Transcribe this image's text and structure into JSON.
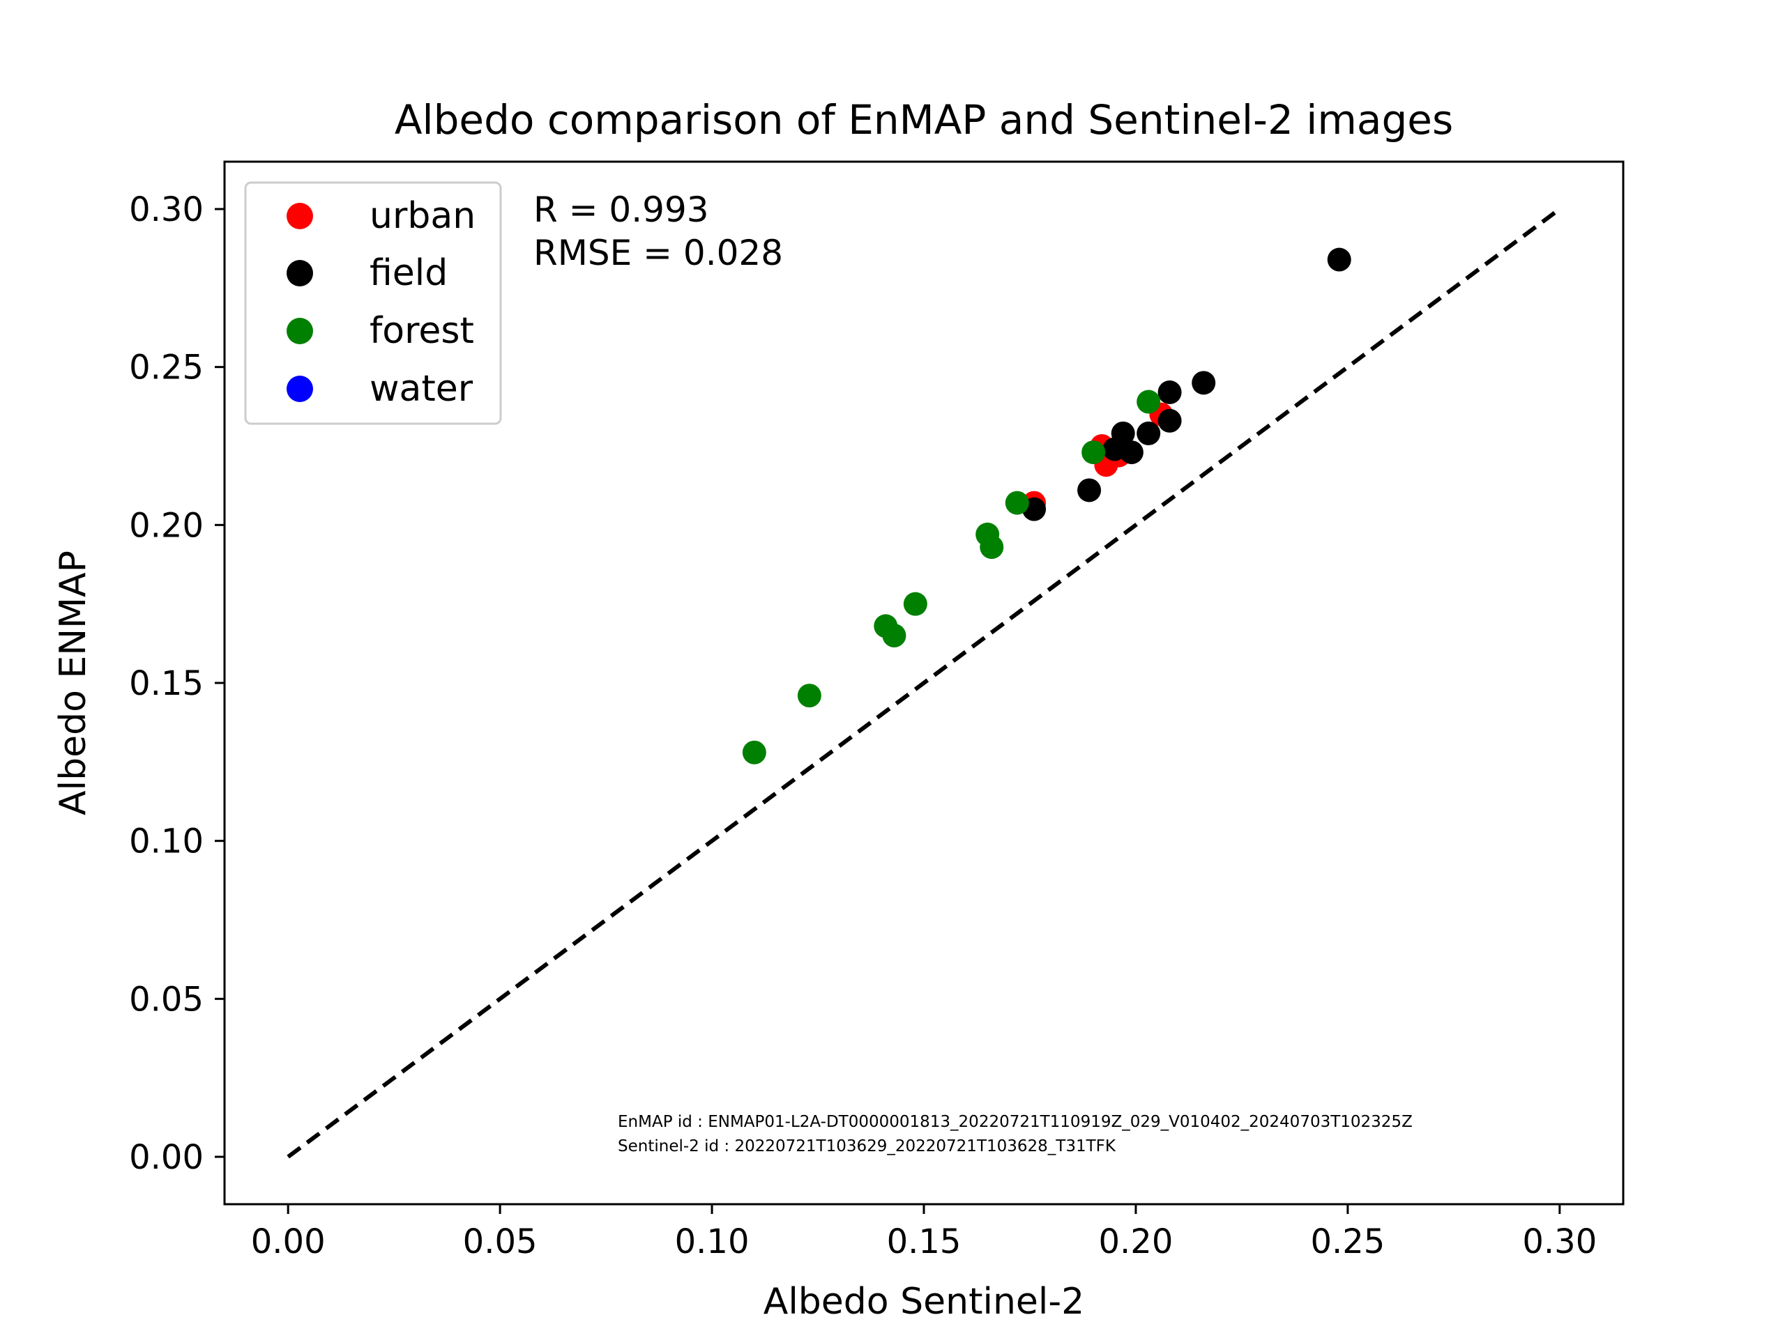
{
  "chart_data": {
    "type": "scatter",
    "title": "Albedo comparison of EnMAP and Sentinel-2 images",
    "xlabel": "Albedo Sentinel-2",
    "ylabel": "Albedo ENMAP",
    "xlim": [
      -0.015,
      0.315
    ],
    "ylim": [
      -0.015,
      0.315
    ],
    "xticks": [
      "0.00",
      "0.05",
      "0.10",
      "0.15",
      "0.20",
      "0.25",
      "0.30"
    ],
    "yticks": [
      "0.00",
      "0.05",
      "0.10",
      "0.15",
      "0.20",
      "0.25",
      "0.30"
    ],
    "legend_position": "top-left",
    "grid": false,
    "reference_line": {
      "style": "dashed",
      "color": "#000000",
      "x": [
        0.0,
        0.3
      ],
      "y": [
        0.0,
        0.3
      ]
    },
    "annotations": {
      "r": "R = 0.993",
      "rmse": "RMSE = 0.028",
      "enmap_id": "EnMAP id : ENMAP01-L2A-DT0000001813_20220721T110919Z_029_V010402_20240703T102325Z",
      "sentinel_id": "Sentinel-2 id : 20220721T103629_20220721T103628_T31TFK"
    },
    "series": [
      {
        "name": "urban",
        "color": "#ff0000",
        "points": [
          {
            "x": 0.176,
            "y": 0.207
          },
          {
            "x": 0.192,
            "y": 0.225
          },
          {
            "x": 0.193,
            "y": 0.219
          },
          {
            "x": 0.196,
            "y": 0.222
          },
          {
            "x": 0.206,
            "y": 0.235
          }
        ]
      },
      {
        "name": "field",
        "color": "#000000",
        "points": [
          {
            "x": 0.176,
            "y": 0.205
          },
          {
            "x": 0.189,
            "y": 0.211
          },
          {
            "x": 0.195,
            "y": 0.224
          },
          {
            "x": 0.197,
            "y": 0.229
          },
          {
            "x": 0.199,
            "y": 0.223
          },
          {
            "x": 0.203,
            "y": 0.229
          },
          {
            "x": 0.208,
            "y": 0.233
          },
          {
            "x": 0.208,
            "y": 0.242
          },
          {
            "x": 0.216,
            "y": 0.245
          },
          {
            "x": 0.248,
            "y": 0.284
          }
        ]
      },
      {
        "name": "forest",
        "color": "#008000",
        "points": [
          {
            "x": 0.11,
            "y": 0.128
          },
          {
            "x": 0.123,
            "y": 0.146
          },
          {
            "x": 0.141,
            "y": 0.168
          },
          {
            "x": 0.143,
            "y": 0.165
          },
          {
            "x": 0.148,
            "y": 0.175
          },
          {
            "x": 0.165,
            "y": 0.197
          },
          {
            "x": 0.166,
            "y": 0.193
          },
          {
            "x": 0.172,
            "y": 0.207
          },
          {
            "x": 0.19,
            "y": 0.223
          },
          {
            "x": 0.203,
            "y": 0.239
          }
        ]
      },
      {
        "name": "water",
        "color": "#0000ff",
        "points": []
      }
    ]
  }
}
